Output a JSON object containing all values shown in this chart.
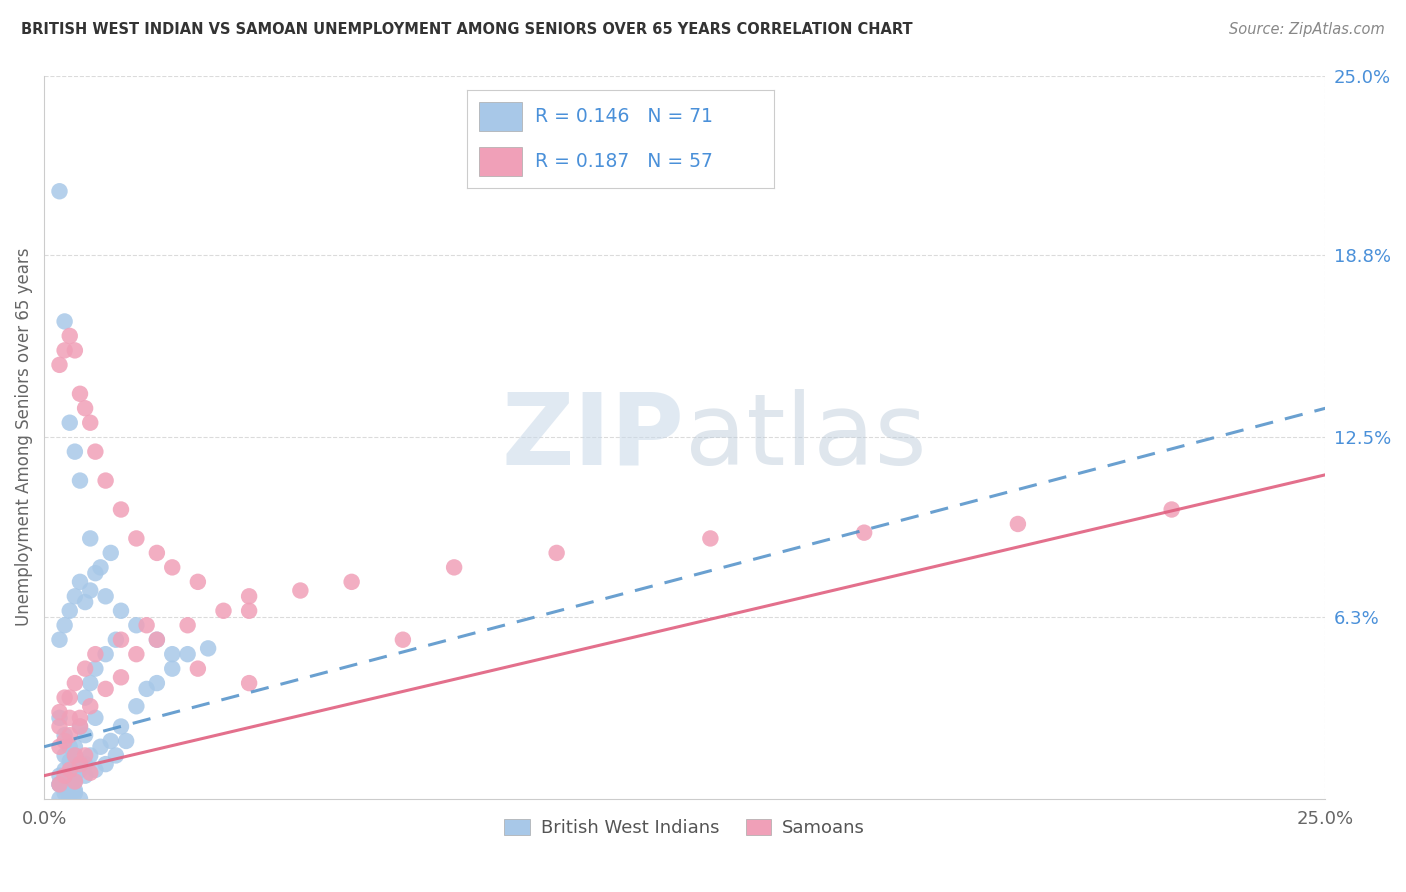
{
  "title": "BRITISH WEST INDIAN VS SAMOAN UNEMPLOYMENT AMONG SENIORS OVER 65 YEARS CORRELATION CHART",
  "source": "Source: ZipAtlas.com",
  "ylabel": "Unemployment Among Seniors over 65 years",
  "xlim": [
    0,
    0.25
  ],
  "ylim": [
    0,
    0.25
  ],
  "ytick_labels_right": [
    "6.3%",
    "12.5%",
    "18.8%",
    "25.0%"
  ],
  "ytick_vals_right": [
    0.063,
    0.125,
    0.188,
    0.25
  ],
  "blue_color": "#a8c8e8",
  "pink_color": "#f0a0b8",
  "blue_line_color": "#5090c8",
  "pink_line_color": "#e06080",
  "watermark_text": "ZIPatlas",
  "background_color": "#ffffff",
  "grid_color": "#cccccc",
  "title_color": "#333333",
  "label_color": "#4a90d9",
  "blue_trend_start_y": 0.018,
  "blue_trend_end_y": 0.135,
  "pink_trend_start_y": 0.008,
  "pink_trend_end_y": 0.112,
  "bwi_x": [
    0.003,
    0.004,
    0.005,
    0.006,
    0.007,
    0.008,
    0.009,
    0.01,
    0.011,
    0.012,
    0.013,
    0.014,
    0.015,
    0.016,
    0.018,
    0.02,
    0.022,
    0.025,
    0.028,
    0.032,
    0.003,
    0.004,
    0.005,
    0.006,
    0.007,
    0.008,
    0.009,
    0.01,
    0.012,
    0.014,
    0.003,
    0.004,
    0.005,
    0.006,
    0.007,
    0.008,
    0.009,
    0.01,
    0.011,
    0.013,
    0.003,
    0.004,
    0.005,
    0.006,
    0.007,
    0.003,
    0.004,
    0.005,
    0.006,
    0.003,
    0.004,
    0.005,
    0.006,
    0.007,
    0.008,
    0.004,
    0.005,
    0.006,
    0.008,
    0.01,
    0.003,
    0.004,
    0.005,
    0.006,
    0.007,
    0.009,
    0.012,
    0.015,
    0.018,
    0.022,
    0.025
  ],
  "bwi_y": [
    0.005,
    0.01,
    0.005,
    0.008,
    0.012,
    0.008,
    0.015,
    0.01,
    0.018,
    0.012,
    0.02,
    0.015,
    0.025,
    0.02,
    0.032,
    0.038,
    0.04,
    0.045,
    0.05,
    0.052,
    0.028,
    0.022,
    0.018,
    0.015,
    0.025,
    0.035,
    0.04,
    0.045,
    0.05,
    0.055,
    0.055,
    0.06,
    0.065,
    0.07,
    0.075,
    0.068,
    0.072,
    0.078,
    0.08,
    0.085,
    0.0,
    0.002,
    0.001,
    0.003,
    0.0,
    0.005,
    0.004,
    0.006,
    0.002,
    0.008,
    0.007,
    0.009,
    0.006,
    0.01,
    0.012,
    0.015,
    0.013,
    0.018,
    0.022,
    0.028,
    0.21,
    0.165,
    0.13,
    0.12,
    0.11,
    0.09,
    0.07,
    0.065,
    0.06,
    0.055,
    0.05
  ],
  "sam_x": [
    0.003,
    0.005,
    0.007,
    0.009,
    0.012,
    0.015,
    0.018,
    0.022,
    0.028,
    0.035,
    0.04,
    0.05,
    0.06,
    0.08,
    0.1,
    0.13,
    0.16,
    0.19,
    0.22,
    0.003,
    0.004,
    0.005,
    0.006,
    0.007,
    0.008,
    0.009,
    0.01,
    0.012,
    0.015,
    0.018,
    0.022,
    0.025,
    0.03,
    0.04,
    0.003,
    0.004,
    0.005,
    0.006,
    0.007,
    0.008,
    0.009,
    0.003,
    0.004,
    0.005,
    0.006,
    0.007,
    0.003,
    0.004,
    0.005,
    0.006,
    0.008,
    0.01,
    0.015,
    0.02,
    0.03,
    0.04,
    0.07
  ],
  "sam_y": [
    0.025,
    0.035,
    0.028,
    0.032,
    0.038,
    0.042,
    0.05,
    0.055,
    0.06,
    0.065,
    0.07,
    0.072,
    0.075,
    0.08,
    0.085,
    0.09,
    0.092,
    0.095,
    0.1,
    0.15,
    0.155,
    0.16,
    0.155,
    0.14,
    0.135,
    0.13,
    0.12,
    0.11,
    0.1,
    0.09,
    0.085,
    0.08,
    0.075,
    0.065,
    0.005,
    0.008,
    0.01,
    0.006,
    0.012,
    0.015,
    0.009,
    0.018,
    0.02,
    0.022,
    0.015,
    0.025,
    0.03,
    0.035,
    0.028,
    0.04,
    0.045,
    0.05,
    0.055,
    0.06,
    0.045,
    0.04,
    0.055
  ]
}
